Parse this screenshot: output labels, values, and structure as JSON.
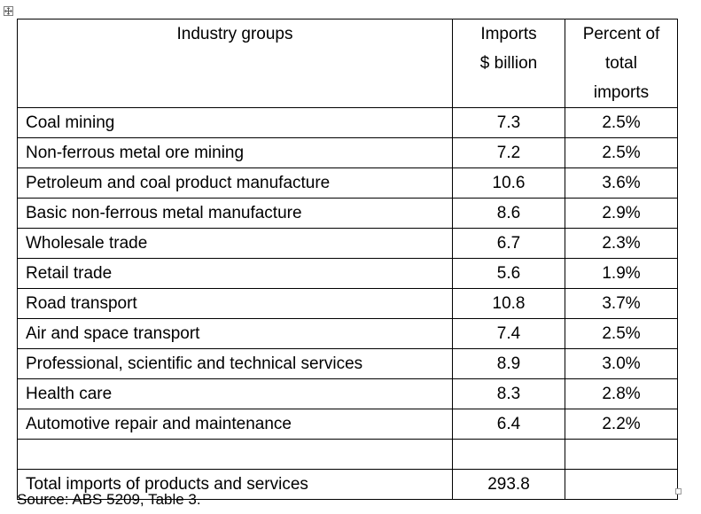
{
  "table": {
    "headers": {
      "industry": "Industry groups",
      "imports_line1": "Imports",
      "imports_line2": "$ billion",
      "percent_line1": "Percent of",
      "percent_line2": "total",
      "percent_line3": "imports"
    },
    "rows": [
      {
        "industry": "Coal mining",
        "imports": "7.3",
        "percent": "2.5%"
      },
      {
        "industry": "Non-ferrous metal ore mining",
        "imports": "7.2",
        "percent": "2.5%"
      },
      {
        "industry": "Petroleum and coal product manufacture",
        "imports": "10.6",
        "percent": "3.6%"
      },
      {
        "industry": "Basic non-ferrous metal manufacture",
        "imports": "8.6",
        "percent": "2.9%"
      },
      {
        "industry": "Wholesale trade",
        "imports": "6.7",
        "percent": "2.3%"
      },
      {
        "industry": "Retail trade",
        "imports": "5.6",
        "percent": "1.9%"
      },
      {
        "industry": "Road transport",
        "imports": "10.8",
        "percent": "3.7%"
      },
      {
        "industry": "Air and space transport",
        "imports": "7.4",
        "percent": "2.5%"
      },
      {
        "industry": "Professional, scientific and technical services",
        "imports": "8.9",
        "percent": "3.0%"
      },
      {
        "industry": "Health care",
        "imports": "8.3",
        "percent": "2.8%"
      },
      {
        "industry": "Automotive repair and maintenance",
        "imports": "6.4",
        "percent": "2.2%"
      }
    ],
    "total": {
      "label": "Total imports of products and services",
      "imports": "293.8",
      "percent": ""
    }
  },
  "source": "Source: ABS 5209, Table 3."
}
